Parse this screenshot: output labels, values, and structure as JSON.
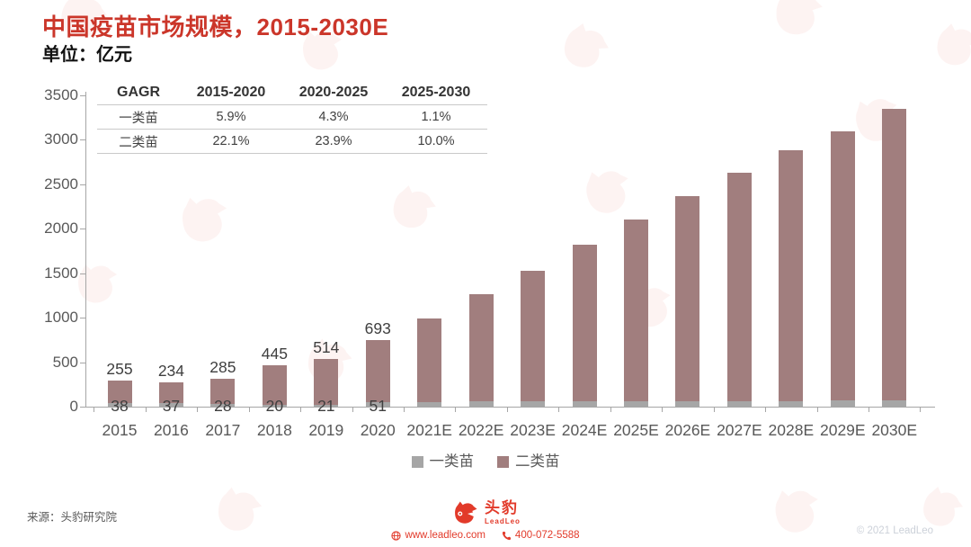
{
  "header": {
    "title": "中国疫苗市场规模，2015-2030E",
    "unit": "单位：亿元"
  },
  "cagr_table": {
    "columns": [
      "GAGR",
      "2015-2020",
      "2020-2025",
      "2025-2030"
    ],
    "rows": [
      {
        "label": "一类苗",
        "values": [
          "5.9%",
          "4.3%",
          "1.1%"
        ]
      },
      {
        "label": "二类苗",
        "values": [
          "22.1%",
          "23.9%",
          "10.0%"
        ]
      }
    ]
  },
  "chart_data": {
    "type": "bar",
    "stacked": true,
    "title": "中国疫苗市场规模，2015-2030E",
    "ylabel": "亿元",
    "ylim": [
      0,
      3500
    ],
    "ytick_step": 500,
    "grid": false,
    "legend_position": "bottom",
    "categories": [
      "2015",
      "2016",
      "2017",
      "2018",
      "2019",
      "2020",
      "2021E",
      "2022E",
      "2023E",
      "2024E",
      "2025E",
      "2026E",
      "2027E",
      "2028E",
      "2029E",
      "2030E"
    ],
    "series": [
      {
        "name": "一类苗",
        "color": "#a6a6a6",
        "values": [
          38,
          37,
          28,
          20,
          21,
          51,
          55,
          56,
          58,
          60,
          62,
          63,
          64,
          65,
          66,
          66
        ]
      },
      {
        "name": "二类苗",
        "color": "#a17e7e",
        "values": [
          255,
          234,
          285,
          445,
          514,
          693,
          935,
          1204,
          1472,
          1760,
          2038,
          2307,
          2566,
          2815,
          3034,
          3284
        ]
      }
    ],
    "data_labels_shown_for": [
      "2015",
      "2016",
      "2017",
      "2018",
      "2019",
      "2020"
    ]
  },
  "legend": {
    "items": [
      {
        "label": "一类苗",
        "color": "#a6a6a6"
      },
      {
        "label": "二类苗",
        "color": "#a17e7e"
      }
    ]
  },
  "footer": {
    "source": "来源：头豹研究院",
    "brand_cn": "头豹",
    "brand_en": "LeadLeo",
    "website": "www.leadleo.com",
    "phone": "400-072-5588",
    "copyright": "© 2021 LeadLeo"
  },
  "colors": {
    "title_red": "#cb362a",
    "brand_red": "#e23a2a",
    "axis_gray": "#a6a6a6",
    "series_gray": "#a6a6a6",
    "series_mauve": "#a17e7e",
    "watermark_pink": "#e8392a"
  }
}
